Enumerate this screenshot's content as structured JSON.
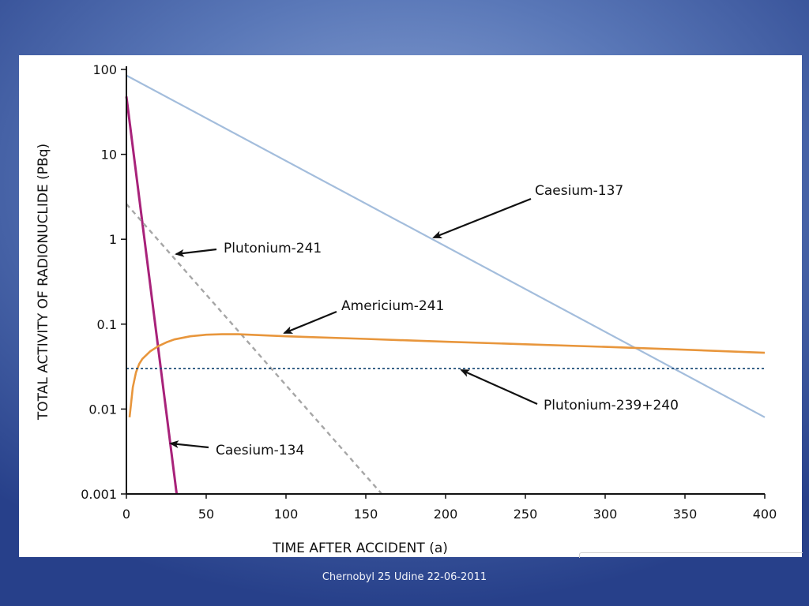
{
  "slide": {
    "footer": "Chernobyl 25 Udine 22-06-2011"
  },
  "colors": {
    "background": "#4a66aa",
    "caesium_137": "#a3bddc",
    "caesium_134": "#a8227a",
    "plutonium_241": "#a6a6a6",
    "americium_241": "#e8963c",
    "plutonium_239_240": "#1f4e79"
  },
  "chart_data": {
    "type": "line",
    "xlabel": "TIME AFTER ACCIDENT (a)",
    "ylabel": "TOTAL ACTIVITY OF RADIONUCLIDE (PBq)",
    "xlim": [
      0,
      400
    ],
    "ylim": [
      0.001,
      100
    ],
    "yscale": "log",
    "xticks": [
      0,
      50,
      100,
      150,
      200,
      250,
      300,
      350,
      400
    ],
    "yticks": [
      100,
      10,
      1,
      0.1,
      0.01,
      0.001
    ],
    "ytick_labels": [
      "100",
      "10",
      "1",
      "0.1",
      "0.01",
      "0.001"
    ],
    "grid": false,
    "legend": "none",
    "series": [
      {
        "name": "Caesium-137",
        "style": "solid",
        "x": [
          0,
          400
        ],
        "y": [
          85,
          0.008
        ]
      },
      {
        "name": "Caesium-134",
        "style": "solid",
        "x": [
          0,
          31.5
        ],
        "y": [
          48,
          0.001
        ]
      },
      {
        "name": "Plutonium-241",
        "style": "dashed",
        "x": [
          0,
          160
        ],
        "y": [
          2.6,
          0.001
        ]
      },
      {
        "name": "Americium-241",
        "style": "solid",
        "x": [
          2,
          4,
          6,
          8,
          10,
          15,
          20,
          25,
          30,
          40,
          50,
          60,
          70,
          100,
          150,
          200,
          250,
          300,
          350,
          400
        ],
        "y": [
          0.008,
          0.018,
          0.027,
          0.034,
          0.039,
          0.048,
          0.055,
          0.061,
          0.066,
          0.072,
          0.075,
          0.076,
          0.076,
          0.072,
          0.067,
          0.062,
          0.058,
          0.054,
          0.05,
          0.046
        ]
      },
      {
        "name": "Plutonium-239+240",
        "style": "dotted",
        "x": [
          0,
          400
        ],
        "y": [
          0.03,
          0.03
        ]
      }
    ],
    "annotations": [
      {
        "series": "Caesium-137",
        "text": "Caesium-137"
      },
      {
        "series": "Plutonium-241",
        "text": "Plutonium-241"
      },
      {
        "series": "Americium-241",
        "text": "Americium-241"
      },
      {
        "series": "Plutonium-239+240",
        "text": "Plutonium-239+240"
      },
      {
        "series": "Caesium-134",
        "text": "Caesium-134"
      }
    ]
  }
}
